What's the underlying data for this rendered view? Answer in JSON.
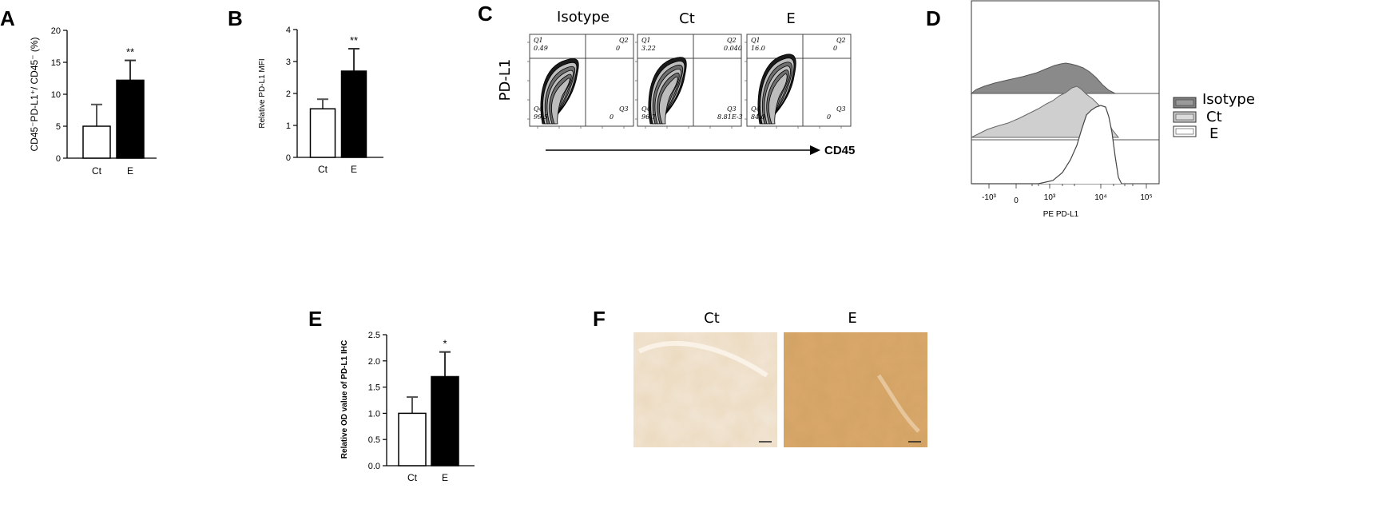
{
  "panels": {
    "A": {
      "letter": "A",
      "chart_data": {
        "type": "bar",
        "categories": [
          "Ct",
          "E"
        ],
        "values": [
          5.0,
          12.2
        ],
        "errors": [
          3.4,
          3.1
        ],
        "significance": [
          "",
          "**"
        ],
        "ylabel": "CD45⁻PD-L1⁺/ CD45⁻ (%)",
        "ylim": [
          0,
          20
        ],
        "yticks": [
          "0",
          "5",
          "10",
          "15",
          "20"
        ],
        "fills": [
          "#ffffff",
          "#000000"
        ]
      }
    },
    "B": {
      "letter": "B",
      "chart_data": {
        "type": "bar",
        "categories": [
          "Ct",
          "E"
        ],
        "values": [
          1.52,
          2.7
        ],
        "errors": [
          0.3,
          0.7
        ],
        "significance": [
          "",
          "**"
        ],
        "ylabel": "Relative PD-L1 MFI",
        "ylim": [
          0,
          4
        ],
        "yticks": [
          "0",
          "1",
          "2",
          "3",
          "4"
        ],
        "fills": [
          "#ffffff",
          "#000000"
        ]
      }
    },
    "C": {
      "letter": "C",
      "plots": [
        {
          "header": "Isotype",
          "quadrants": {
            "q1": "Q1",
            "q1v": "0.49",
            "q2": "Q2",
            "q2v": "0",
            "q3": "Q3",
            "q3v": "0",
            "q4": "Q4",
            "q4v": "99.5"
          }
        },
        {
          "header": "Ct",
          "quadrants": {
            "q1": "Q1",
            "q1v": "3.22",
            "q2": "Q2",
            "q2v": "0.040",
            "q3": "Q3",
            "q3v": "8.81E-3",
            "q4": "Q4",
            "q4v": "96.7"
          }
        },
        {
          "header": "E",
          "quadrants": {
            "q1": "Q1",
            "q1v": "16.0",
            "q2": "Q2",
            "q2v": "0",
            "q3": "Q3",
            "q3v": "0",
            "q4": "Q4",
            "q4v": "84.0"
          }
        }
      ],
      "y_label": "PD-L1",
      "x_label": "CD45"
    },
    "D": {
      "letter": "D",
      "x_label": "PE PD-L1",
      "x_ticks": [
        "-10³",
        "0",
        "10³",
        "10⁴",
        "10⁵"
      ],
      "legend": [
        {
          "label": "Isotype",
          "color": "#808080"
        },
        {
          "label": "Ct",
          "color": "#c8c8c8"
        },
        {
          "label": "E",
          "color": "#ffffff"
        }
      ]
    },
    "E": {
      "letter": "E",
      "chart_data": {
        "type": "bar",
        "categories": [
          "Ct",
          "E"
        ],
        "values": [
          1.0,
          1.7
        ],
        "errors": [
          0.31,
          0.47
        ],
        "significance": [
          "",
          "*"
        ],
        "ylabel": "Relative OD value of PD-L1 IHC",
        "ylim": [
          0,
          2.5
        ],
        "yticks": [
          "0.0",
          "0.5",
          "1.0",
          "1.5",
          "2.0",
          "2.5"
        ],
        "fills": [
          "#ffffff",
          "#000000"
        ]
      }
    },
    "F": {
      "letter": "F",
      "images": [
        {
          "header": "Ct",
          "tone": "#e3c9a4"
        },
        {
          "header": "E",
          "tone": "#c98a45"
        }
      ]
    }
  }
}
